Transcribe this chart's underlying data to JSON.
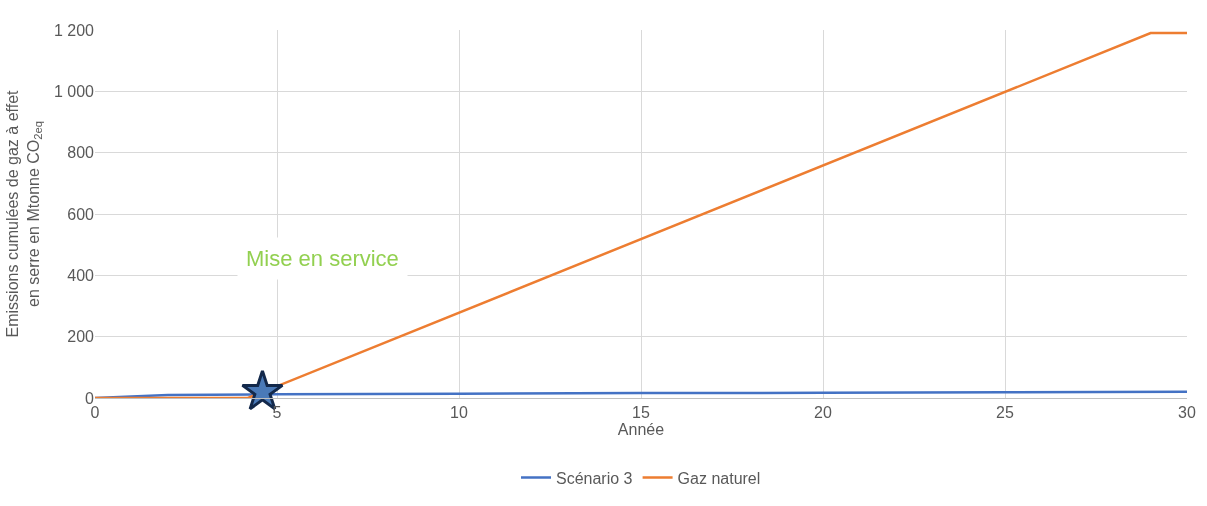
{
  "chart_data": {
    "type": "line",
    "xlabel": "Année",
    "ylabel": "Emissions cumulées de gaz à effet en serre en Mtonne CO$_{2eq}$",
    "xlim": [
      0,
      30
    ],
    "xticks": [
      0,
      5,
      10,
      15,
      20,
      25,
      30
    ],
    "ylim": [
      0,
      1200
    ],
    "yticks": [
      0,
      200,
      400,
      600,
      800,
      {
        "value": 1000,
        "label": "1 000"
      },
      {
        "value": 1200,
        "label": "1 200"
      }
    ],
    "grid": true,
    "legend": "bottom",
    "marker": "none",
    "line_style": "solid",
    "series": [
      {
        "name": "Scénario 3",
        "color": "#4472c4",
        "x": [
          0,
          2,
          5,
          10,
          15,
          20,
          25,
          30
        ],
        "values": [
          0,
          10,
          12,
          14,
          16,
          17,
          19,
          20
        ]
      },
      {
        "name": "Gaz naturel",
        "color": "#ed7d31",
        "x": [
          0,
          4.2,
          29,
          30
        ],
        "values": [
          0,
          0,
          1190,
          1190
        ]
      },
      {
        "type": "scatter",
        "marker": "star",
        "color": "#4a7ab8",
        "x": [
          4.6
        ],
        "values": [
          20
        ]
      }
    ],
    "annotations": [
      "Mise en service"
    ]
  }
}
